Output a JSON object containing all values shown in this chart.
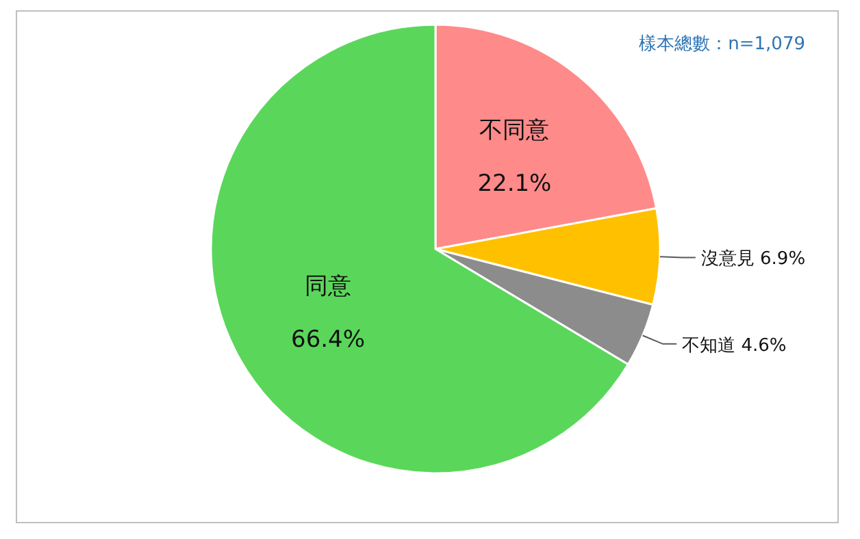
{
  "chart_data": {
    "type": "pie",
    "categories": [
      "不同意",
      "沒意見",
      "不知道",
      "同意"
    ],
    "values": [
      22.1,
      6.9,
      4.6,
      66.4
    ],
    "value_labels": [
      "22.1%",
      "6.9%",
      "4.6%",
      "66.4%"
    ],
    "colors": [
      "#ff8a8a",
      "#ffc000",
      "#8c8c8c",
      "#5ad75a"
    ],
    "annotations": [
      "樣本總數：n=1,079"
    ]
  }
}
